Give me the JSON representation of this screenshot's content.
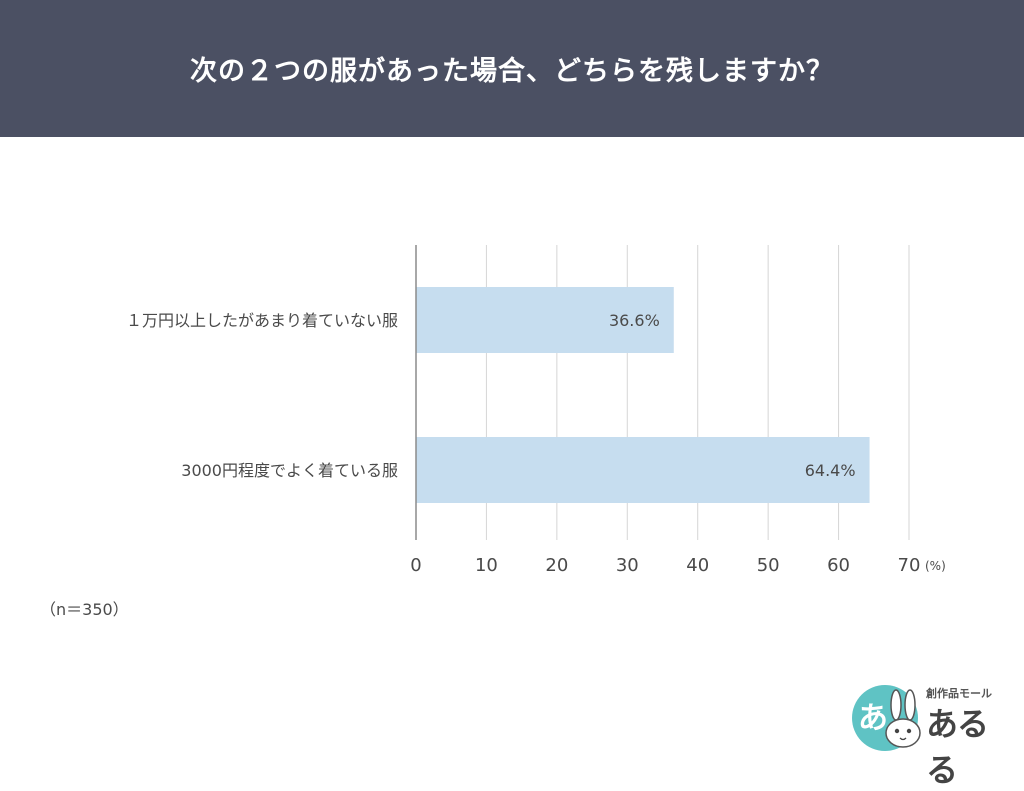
{
  "header": {
    "title": "次の２つの服があった場合、どちらを残しますか？"
  },
  "note": "（n＝350）",
  "logo": {
    "badge_char": "あ",
    "subtitle": "創作品モール",
    "name": "あるる"
  },
  "colors": {
    "header_bg": "#4b5063",
    "bar": "#c6ddef",
    "grid": "#d6d6d6",
    "axis": "#8c8c8c",
    "text": "#4a4a4a",
    "logo_teal": "#5fc3c4"
  },
  "chart_data": {
    "type": "bar",
    "orientation": "horizontal",
    "categories": [
      "１万円以上したがあまり着ていない服",
      "3000円程度でよく着ている服"
    ],
    "values": [
      36.6,
      64.4
    ],
    "value_labels": [
      "36.6%",
      "64.4%"
    ],
    "xlim": [
      0,
      70
    ],
    "xticks": [
      0,
      10,
      20,
      30,
      40,
      50,
      60,
      70
    ],
    "tick_labels": [
      "0",
      "10",
      "20",
      "30",
      "40",
      "50",
      "60",
      "70"
    ],
    "unit_label": "(%)",
    "grid": true,
    "legend": "none"
  }
}
